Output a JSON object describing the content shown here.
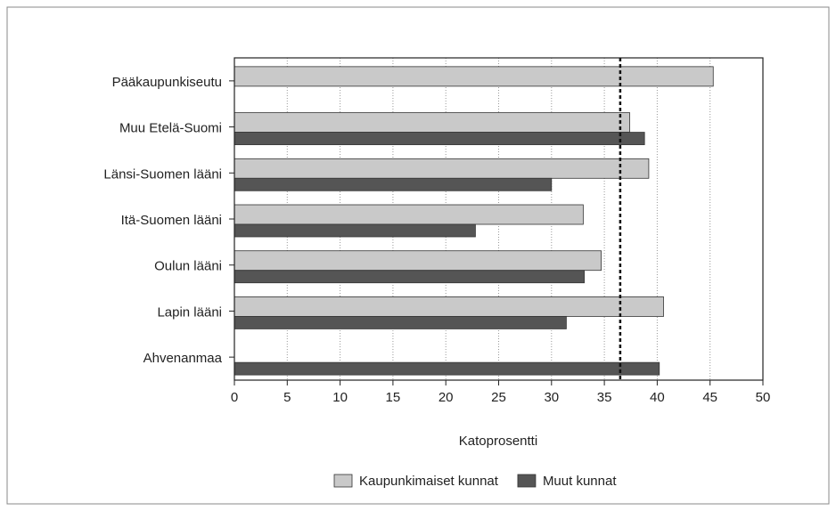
{
  "chart_data": {
    "type": "hbar",
    "categories": [
      "Pääkaupunkiseutu",
      "Muu Etelä-Suomi",
      "Länsi-Suomen lääni",
      "Itä-Suomen lääni",
      "Oulun lääni",
      "Lapin lääni",
      "Ahvenanmaa"
    ],
    "series": [
      {
        "name": "Kaupunkimaiset kunnat",
        "color": "#c9c9c9",
        "values": [
          45.3,
          37.4,
          39.2,
          33.0,
          34.7,
          40.6,
          null
        ]
      },
      {
        "name": "Muut kunnat",
        "color": "#555555",
        "values": [
          null,
          38.8,
          30.0,
          22.8,
          33.1,
          31.4,
          40.2
        ]
      }
    ],
    "x_label": "Katoprosentti",
    "xlim": [
      0,
      50
    ],
    "xticks": [
      0,
      5,
      10,
      15,
      20,
      25,
      30,
      35,
      40,
      45,
      50
    ],
    "reference_line": 36.5,
    "grid": true,
    "legend": "bottom"
  }
}
